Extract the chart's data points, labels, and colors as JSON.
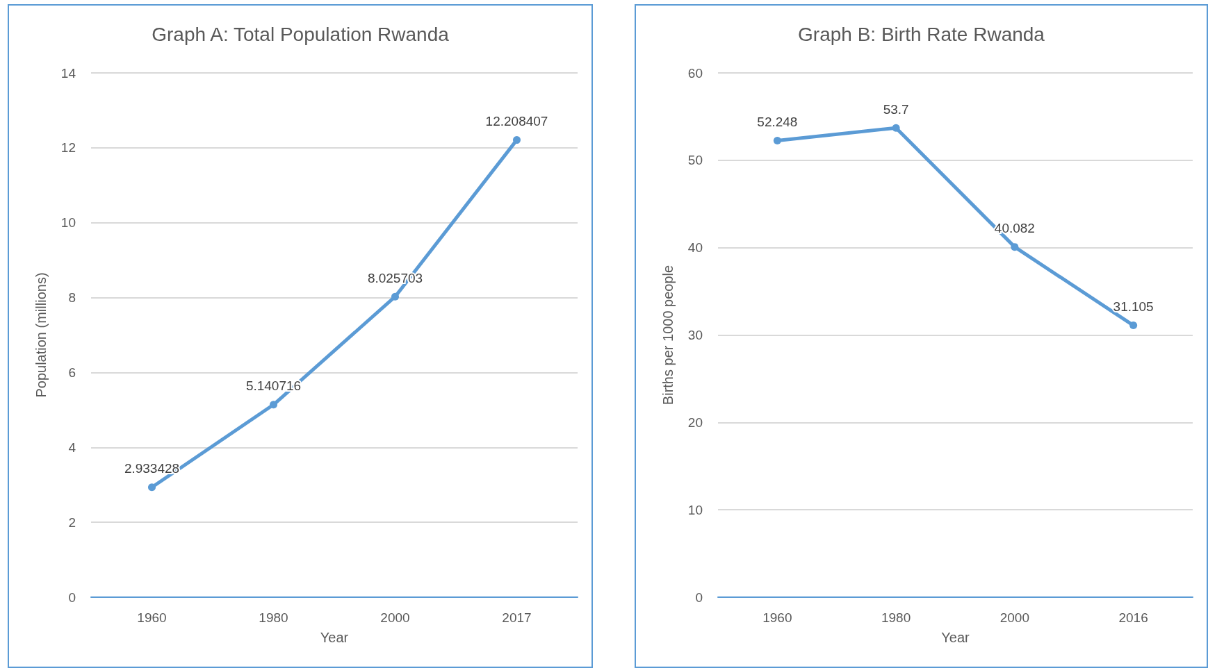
{
  "chart_data": [
    {
      "type": "line",
      "title": "Graph A: Total Population Rwanda",
      "xlabel": "Year",
      "ylabel": "Population (millions)",
      "categories": [
        "1960",
        "1980",
        "2000",
        "2017"
      ],
      "series": [
        {
          "color": "#5b9bd5",
          "values": [
            2.933428,
            5.140716,
            8.025703,
            12.208407
          ]
        }
      ],
      "ylim": [
        0,
        14
      ],
      "yticks": [
        0,
        2,
        4,
        6,
        8,
        10,
        12,
        14
      ],
      "grid": "y",
      "marker": "circle",
      "line_style": "solid",
      "data_labels": true
    },
    {
      "type": "line",
      "title": "Graph B: Birth Rate Rwanda",
      "xlabel": "Year",
      "ylabel": "Births per 1000 people",
      "categories": [
        "1960",
        "1980",
        "2000",
        "2016"
      ],
      "series": [
        {
          "color": "#5b9bd5",
          "values": [
            52.248,
            53.7,
            40.082,
            31.105
          ]
        }
      ],
      "ylim": [
        0,
        60
      ],
      "yticks": [
        0,
        10,
        20,
        30,
        40,
        50,
        60
      ],
      "grid": "y",
      "marker": "circle",
      "line_style": "solid",
      "data_labels": true
    }
  ]
}
